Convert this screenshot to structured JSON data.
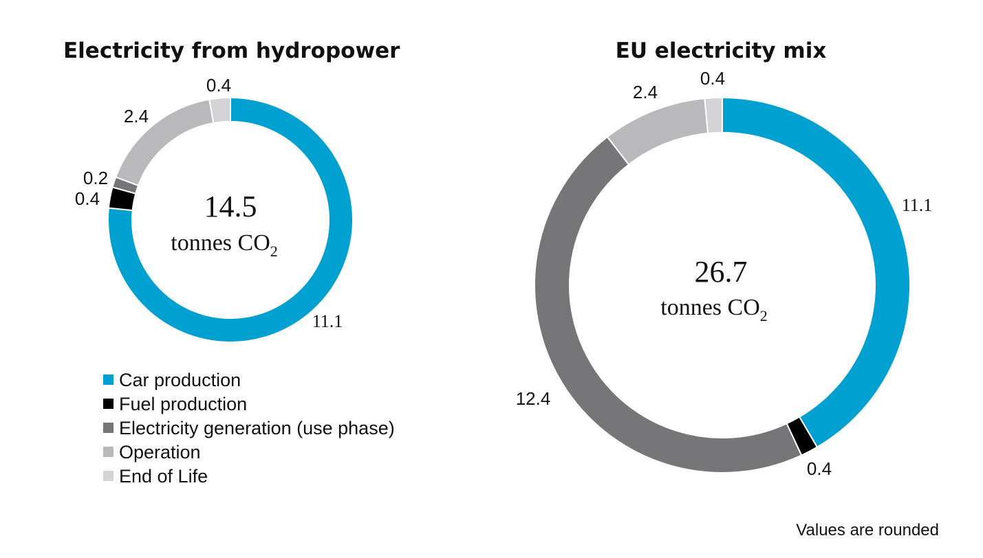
{
  "legend": [
    {
      "label": "Car production",
      "color": "#00a0d0"
    },
    {
      "label": "Fuel production",
      "color": "#000000"
    },
    {
      "label": "Electricity generation (use phase)",
      "color": "#767678"
    },
    {
      "label": "Operation",
      "color": "#b9b8bb"
    },
    {
      "label": "End of Life",
      "color": "#d4d4d6"
    }
  ],
  "note": "Values are rounded",
  "chart_data": [
    {
      "type": "pie",
      "title": "Electricity from hydropower",
      "center_value": "14.5",
      "center_unit": "tonnes CO",
      "center_unit_sub": "2",
      "slices": [
        {
          "category": "Car production",
          "value": 11.1,
          "label": "11.1"
        },
        {
          "category": "Fuel production",
          "value": 0.4,
          "label": "0.4"
        },
        {
          "category": "Electricity generation (use phase)",
          "value": 0.2,
          "label": "0.2"
        },
        {
          "category": "Operation",
          "value": 2.4,
          "label": "2.4"
        },
        {
          "category": "End of Life",
          "value": 0.4,
          "label": "0.4"
        }
      ]
    },
    {
      "type": "pie",
      "title": "EU electricity mix",
      "center_value": "26.7",
      "center_unit": "tonnes CO",
      "center_unit_sub": "2",
      "slices": [
        {
          "category": "Car production",
          "value": 11.1,
          "label": "11.1"
        },
        {
          "category": "Fuel production",
          "value": 0.4,
          "label": "0.4"
        },
        {
          "category": "Electricity generation (use phase)",
          "value": 12.4,
          "label": "12.4"
        },
        {
          "category": "Operation",
          "value": 2.4,
          "label": "2.4"
        },
        {
          "category": "End of Life",
          "value": 0.4,
          "label": "0.4"
        }
      ]
    }
  ]
}
